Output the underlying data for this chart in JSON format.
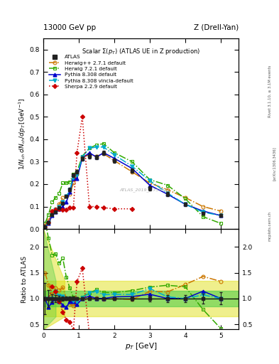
{
  "title_top": "13000 GeV pp",
  "title_right": "Z (Drell-Yan)",
  "plot_title": "Scalar Σ(p_T) (ATLAS UE in Z production)",
  "ylabel_main": "1/N$_{ch}$ dN$_{ch}$/dp$_T$ [GeV$^{-1}$]",
  "ylabel_ratio": "Ratio to ATLAS",
  "xlabel": "p$_T$ [GeV]",
  "watermark": "ATLAS_2019_I1736531",
  "rivet_label": "Rivet 3.1.10, ≥ 3.1M events",
  "arxiv_label": "[arXiv:1306.3436]",
  "mcplots_label": "mcplots.cern.ch",
  "atlas_pt": [
    0.05,
    0.15,
    0.25,
    0.35,
    0.45,
    0.55,
    0.65,
    0.75,
    0.85,
    0.95,
    1.1,
    1.3,
    1.5,
    1.7,
    2.0,
    2.5,
    3.0,
    3.5,
    4.0,
    4.5,
    5.0
  ],
  "atlas_y": [
    0.01,
    0.03,
    0.065,
    0.075,
    0.095,
    0.115,
    0.145,
    0.175,
    0.24,
    0.255,
    0.315,
    0.325,
    0.32,
    0.34,
    0.305,
    0.26,
    0.18,
    0.155,
    0.11,
    0.07,
    0.06
  ],
  "atlas_yerr": [
    0.003,
    0.005,
    0.005,
    0.005,
    0.005,
    0.005,
    0.005,
    0.008,
    0.008,
    0.008,
    0.01,
    0.01,
    0.01,
    0.01,
    0.01,
    0.01,
    0.01,
    0.01,
    0.007,
    0.007,
    0.007
  ],
  "herwig271_pt": [
    0.05,
    0.15,
    0.25,
    0.35,
    0.45,
    0.55,
    0.65,
    0.75,
    0.85,
    0.95,
    1.1,
    1.3,
    1.5,
    1.7,
    2.0,
    2.5,
    3.0,
    3.5,
    4.0,
    4.5,
    5.0
  ],
  "herwig271_y": [
    0.015,
    0.038,
    0.07,
    0.09,
    0.11,
    0.14,
    0.145,
    0.155,
    0.205,
    0.245,
    0.32,
    0.33,
    0.325,
    0.335,
    0.305,
    0.255,
    0.205,
    0.175,
    0.14,
    0.1,
    0.08
  ],
  "herwig721_pt": [
    0.05,
    0.15,
    0.25,
    0.35,
    0.45,
    0.55,
    0.65,
    0.75,
    0.85,
    0.95,
    1.1,
    1.3,
    1.5,
    1.7,
    2.0,
    2.5,
    3.0,
    3.5,
    4.0,
    4.5,
    5.0
  ],
  "herwig721_y": [
    0.025,
    0.065,
    0.12,
    0.14,
    0.16,
    0.205,
    0.205,
    0.21,
    0.245,
    0.255,
    0.325,
    0.36,
    0.375,
    0.38,
    0.34,
    0.3,
    0.22,
    0.195,
    0.135,
    0.055,
    0.025
  ],
  "pythia308_pt": [
    0.05,
    0.15,
    0.25,
    0.35,
    0.45,
    0.55,
    0.65,
    0.75,
    0.85,
    0.95,
    1.1,
    1.3,
    1.5,
    1.7,
    2.0,
    2.5,
    3.0,
    3.5,
    4.0,
    4.5,
    5.0
  ],
  "pythia308_y": [
    0.01,
    0.025,
    0.06,
    0.075,
    0.09,
    0.1,
    0.12,
    0.165,
    0.225,
    0.225,
    0.315,
    0.34,
    0.32,
    0.34,
    0.315,
    0.27,
    0.195,
    0.155,
    0.11,
    0.08,
    0.06
  ],
  "pythia308v_pt": [
    0.05,
    0.15,
    0.25,
    0.35,
    0.45,
    0.55,
    0.65,
    0.75,
    0.85,
    0.95,
    1.1,
    1.3,
    1.5,
    1.7,
    2.0,
    2.5,
    3.0,
    3.5,
    4.0,
    4.5,
    5.0
  ],
  "pythia308v_y": [
    0.01,
    0.03,
    0.065,
    0.085,
    0.1,
    0.12,
    0.145,
    0.175,
    0.23,
    0.24,
    0.32,
    0.36,
    0.365,
    0.365,
    0.33,
    0.28,
    0.215,
    0.16,
    0.11,
    0.075,
    0.06
  ],
  "sherpa229_pt": [
    0.05,
    0.15,
    0.25,
    0.35,
    0.45,
    0.55,
    0.65,
    0.75,
    0.85,
    0.95,
    1.1,
    1.3,
    1.5,
    1.7,
    2.0,
    2.5
  ],
  "sherpa229_y": [
    0.01,
    0.03,
    0.08,
    0.085,
    0.09,
    0.085,
    0.085,
    0.095,
    0.095,
    0.34,
    0.5,
    0.1,
    0.1,
    0.095,
    0.09,
    0.09
  ],
  "color_atlas": "#222222",
  "color_herwig271": "#cc7700",
  "color_herwig721": "#33aa00",
  "color_pythia308": "#0000cc",
  "color_pythia308v": "#00aacc",
  "color_sherpa229": "#cc0000",
  "ylim_main": [
    0.0,
    0.85
  ],
  "ylim_ratio": [
    0.4,
    2.35
  ],
  "xlim": [
    0.0,
    5.5
  ],
  "yticks_main": [
    0.0,
    0.1,
    0.2,
    0.3,
    0.4,
    0.5,
    0.6,
    0.7,
    0.8
  ],
  "yticks_ratio": [
    0.5,
    1.0,
    1.5,
    2.0
  ],
  "xticks": [
    0,
    1,
    2,
    3,
    4,
    5
  ]
}
